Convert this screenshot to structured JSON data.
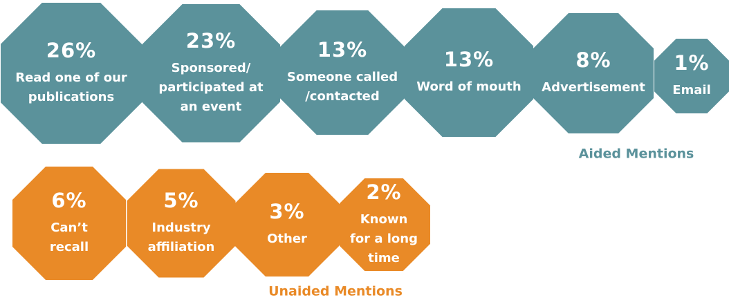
{
  "groups": [
    {
      "title": "Aided Mentions",
      "color": "#5b929b",
      "items": [
        {
          "value": "26%",
          "label": [
            "Read one of our",
            "publications"
          ]
        },
        {
          "value": "23%",
          "label": [
            "Sponsored/",
            "participated at",
            "an event"
          ]
        },
        {
          "value": "13%",
          "label": [
            "Someone called",
            "/contacted"
          ]
        },
        {
          "value": "13%",
          "label": [
            "Word of mouth"
          ]
        },
        {
          "value": "8%",
          "label": [
            "Advertisement"
          ]
        },
        {
          "value": "1%",
          "label": [
            "Email"
          ]
        }
      ]
    },
    {
      "title": "Unaided Mentions",
      "color": "#e98a27",
      "items": [
        {
          "value": "6%",
          "label": [
            "Can’t",
            "recall"
          ]
        },
        {
          "value": "5%",
          "label": [
            "Industry",
            "affiliation"
          ]
        },
        {
          "value": "3%",
          "label": [
            "Other"
          ]
        },
        {
          "value": "2%",
          "label": [
            "Known",
            "for a long",
            "time"
          ]
        }
      ]
    }
  ]
}
